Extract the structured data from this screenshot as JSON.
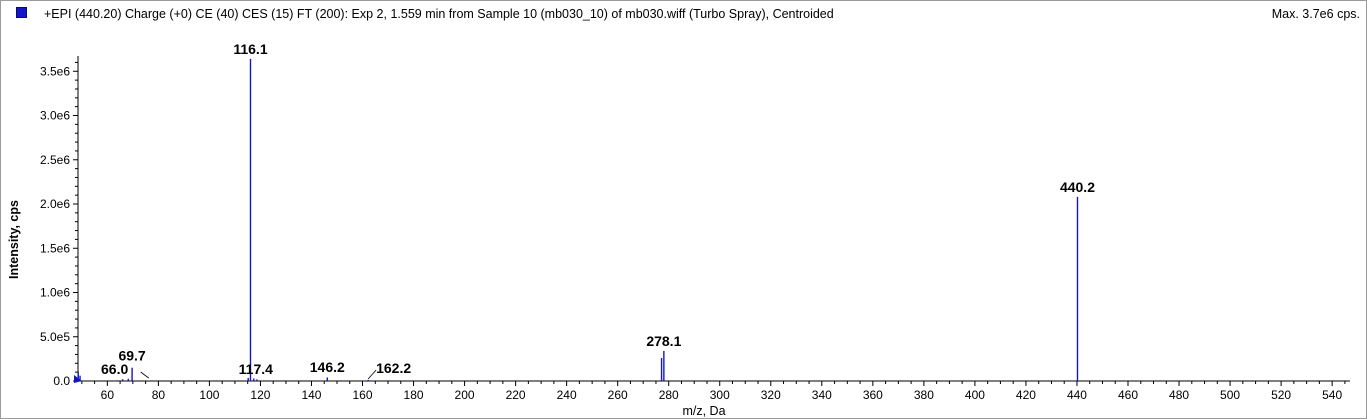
{
  "header": {
    "title": "+EPI (440.20) Charge (+0) CE (40) CES (15) FT (200): Exp 2, 1.559 min from Sample 10 (mb030_10) of mb030.wiff (Turbo Spray), Centroided",
    "max_label": "Max. 3.7e6 cps.",
    "series_color": "#1515c8"
  },
  "chart_data": {
    "type": "bar",
    "xlabel": "m/z, Da",
    "ylabel": "Intensity, cps",
    "xlim": [
      48.5,
      547
    ],
    "ylim": [
      0,
      3650000.0
    ],
    "x_ticks": [
      60,
      80,
      100,
      120,
      140,
      160,
      180,
      200,
      220,
      240,
      260,
      280,
      300,
      320,
      340,
      360,
      380,
      400,
      420,
      440,
      460,
      480,
      500,
      520,
      540
    ],
    "y_ticks": [
      {
        "value": 0,
        "label": "0.0"
      },
      {
        "value": 500000,
        "label": "5.0e5"
      },
      {
        "value": 1000000,
        "label": "1.0e6"
      },
      {
        "value": 1500000,
        "label": "1.5e6"
      },
      {
        "value": 2000000,
        "label": "2.0e6"
      },
      {
        "value": 2500000,
        "label": "2.5e6"
      },
      {
        "value": 3000000,
        "label": "3.0e6"
      },
      {
        "value": 3500000,
        "label": "3.5e6"
      }
    ],
    "peaks": [
      {
        "mz": 48.6,
        "intensity": 100000
      },
      {
        "mz": 49.3,
        "intensity": 60000
      },
      {
        "mz": 64.0,
        "intensity": 8000
      },
      {
        "mz": 66.0,
        "intensity": 20000
      },
      {
        "mz": 68.2,
        "intensity": 25000
      },
      {
        "mz": 69.7,
        "intensity": 150000
      },
      {
        "mz": 115.2,
        "intensity": 35000
      },
      {
        "mz": 116.1,
        "intensity": 3640000
      },
      {
        "mz": 117.4,
        "intensity": 28000
      },
      {
        "mz": 118.6,
        "intensity": 18000
      },
      {
        "mz": 146.2,
        "intensity": 40000
      },
      {
        "mz": 162.2,
        "intensity": 12000
      },
      {
        "mz": 277.2,
        "intensity": 260000
      },
      {
        "mz": 278.1,
        "intensity": 340000
      },
      {
        "mz": 440.2,
        "intensity": 2080000
      }
    ],
    "annotations": [
      {
        "text": "116.1",
        "mz": 116.1
      },
      {
        "text": "440.2",
        "mz": 440.2
      },
      {
        "text": "278.1",
        "mz": 278.1
      },
      {
        "text": "69.7",
        "mz": 69.7
      },
      {
        "text": "66.0",
        "mz": 66.0
      },
      {
        "text": "117.4",
        "mz": 117.4
      },
      {
        "text": "146.2",
        "mz": 146.2
      },
      {
        "text": "162.2",
        "mz": 162.2
      }
    ]
  }
}
